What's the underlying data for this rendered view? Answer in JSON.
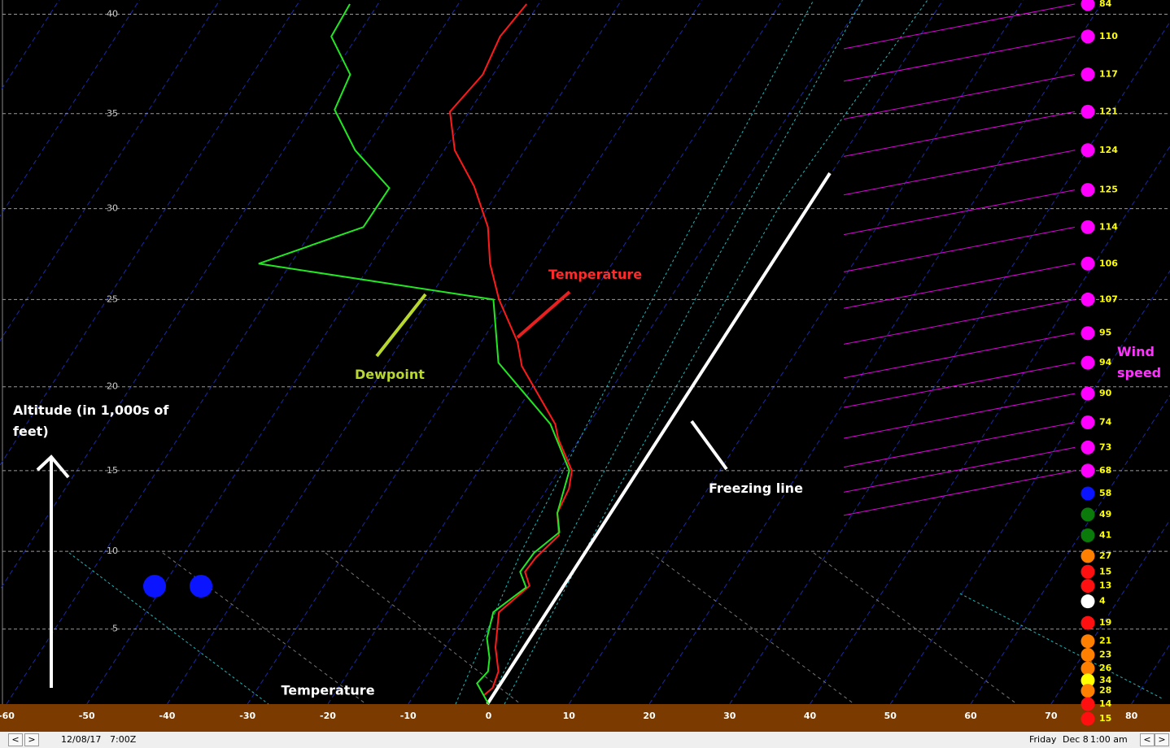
{
  "chart_data": {
    "type": "skew-t",
    "x_label": "Temperature",
    "y_label": "Altitude (in 1,000s of feet)",
    "xlim": [
      -60.5,
      84.8
    ],
    "xticks": [
      -60,
      -50,
      -40,
      -30,
      -20,
      -10,
      0,
      10,
      20,
      30,
      40,
      50,
      60,
      70,
      80
    ],
    "ylim": [
      0,
      40.5
    ],
    "yticks": [
      5,
      10,
      15,
      20,
      25,
      30,
      35,
      40
    ],
    "grid": true,
    "series": [
      {
        "name": "Temperature",
        "color": "#ff1a1a",
        "x": [
          -1.3,
          -0.8,
          -1.4,
          -3.7,
          -6.1,
          -4.4,
          -6.1,
          -5.9,
          -4.8,
          -6.8,
          -7.3,
          -8.4,
          -12.6,
          -14.2,
          -23.0,
          -25.5,
          -31.2,
          -35.2,
          -38.4,
          -43.4,
          -48.7,
          -52.4,
          -51.3,
          -52.2,
          -51.5
        ],
        "values": [
          0.6,
          1.1,
          2.2,
          3.8,
          6.1,
          7.8,
          8.7,
          9.6,
          11.0,
          12.4,
          13.9,
          15.0,
          16.9,
          17.8,
          21.2,
          22.6,
          25.0,
          27.0,
          29.0,
          31.2,
          33.1,
          35.1,
          37.0,
          38.9,
          40.5
        ]
      },
      {
        "name": "Dewpoint",
        "color": "#22e822",
        "x": [
          0,
          -3.1,
          -2.7,
          -3.6,
          -5.5,
          -6.8,
          -4.7,
          -6.7,
          -6.5,
          -5.0,
          -6.8,
          -8.7,
          -14.8,
          -26.2,
          -31.9,
          -64.0,
          -53.9,
          -53.8,
          -61.1,
          -66.9,
          -67.8,
          -73.2,
          -73.5
        ],
        "values": [
          0,
          1.4,
          2.2,
          3.1,
          4.4,
          6.1,
          7.7,
          8.7,
          9.9,
          11.2,
          12.4,
          15.0,
          17.8,
          21.4,
          25.0,
          27.0,
          29.0,
          31.1,
          33.1,
          35.2,
          37.0,
          38.9,
          40.5
        ]
      }
    ],
    "wind": {
      "name": "Wind speed",
      "altitudes": [
        40.5,
        38.9,
        37.0,
        35.1,
        33.1,
        31.0,
        29.0,
        27.0,
        25.0,
        23.1,
        21.4,
        19.6,
        17.9,
        16.4,
        15.0,
        13.6,
        12.3,
        11.0,
        9.7,
        8.7,
        7.8,
        6.8,
        5.4,
        4.2,
        3.3,
        2.4,
        1.6,
        0.9,
        0,
        -1.0
      ],
      "values": [
        84,
        110,
        117,
        121,
        124,
        125,
        114,
        106,
        107,
        95,
        94,
        90,
        74,
        73,
        68,
        58,
        49,
        41,
        27,
        15,
        13,
        4,
        19,
        21,
        23,
        26,
        34,
        28,
        14,
        15
      ],
      "colors": [
        "#ff00ff",
        "#ff00ff",
        "#ff00ff",
        "#ff00ff",
        "#ff00ff",
        "#ff00ff",
        "#ff00ff",
        "#ff00ff",
        "#ff00ff",
        "#ff00ff",
        "#ff00ff",
        "#ff00ff",
        "#ff00ff",
        "#ff00ff",
        "#ff00ff",
        "#0a14ff",
        "#0a7a0a",
        "#0a7a0a",
        "#ff8000",
        "#ff1010",
        "#ff1010",
        "#ffffff",
        "#ff1010",
        "#ff8000",
        "#ff8000",
        "#ff8000",
        "#ffff00",
        "#ff8000",
        "#ff1010",
        "#ff1010"
      ]
    },
    "annotations": [
      "Freezing line"
    ]
  },
  "status": {
    "prev": "<",
    "next": ">",
    "date": "12/08/17",
    "time": "7:00Z",
    "day": "Friday",
    "local_date": "Dec 8",
    "local_time": "1:00 am"
  }
}
